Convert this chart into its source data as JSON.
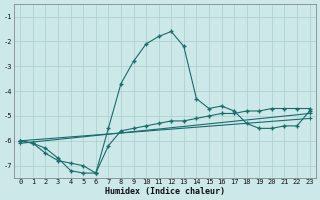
{
  "xlabel": "Humidex (Indice chaleur)",
  "bg_color": "#cce8e8",
  "line_color": "#1a6b6b",
  "grid_color": "#aacece",
  "xlim": [
    -0.5,
    23.5
  ],
  "ylim": [
    -7.5,
    -0.5
  ],
  "yticks": [
    -7,
    -6,
    -5,
    -4,
    -3,
    -2,
    -1
  ],
  "xticks": [
    0,
    1,
    2,
    3,
    4,
    5,
    6,
    7,
    8,
    9,
    10,
    11,
    12,
    13,
    14,
    15,
    16,
    17,
    18,
    19,
    20,
    21,
    22,
    23
  ],
  "curve1_x": [
    0,
    1,
    2,
    3,
    4,
    5,
    6,
    7,
    8,
    9,
    10,
    11,
    12,
    13,
    14,
    15,
    16,
    17,
    18,
    19,
    20,
    21,
    22,
    23
  ],
  "curve1_y": [
    -6.0,
    -6.1,
    -6.5,
    -6.8,
    -6.9,
    -7.0,
    -7.3,
    -5.5,
    -3.7,
    -2.8,
    -2.1,
    -1.8,
    -1.6,
    -2.2,
    -4.3,
    -4.7,
    -4.6,
    -4.8,
    -5.3,
    -5.5,
    -5.5,
    -5.4,
    -5.4,
    -4.8
  ],
  "curve2_x": [
    0,
    1,
    2,
    3,
    4,
    5,
    6,
    7,
    8,
    9,
    10,
    11,
    12,
    13,
    14,
    15,
    16,
    17,
    18,
    19,
    20,
    21,
    22,
    23
  ],
  "curve2_y": [
    -6.0,
    -6.1,
    -6.3,
    -6.7,
    -7.2,
    -7.3,
    -7.3,
    -6.2,
    -5.6,
    -5.5,
    -5.4,
    -5.3,
    -5.2,
    -5.2,
    -5.1,
    -5.0,
    -4.9,
    -4.9,
    -4.8,
    -4.8,
    -4.7,
    -4.7,
    -4.7,
    -4.7
  ],
  "line3_x": [
    0,
    23
  ],
  "line3_y": [
    -6.0,
    -5.1
  ],
  "line4_x": [
    0,
    23
  ],
  "line4_y": [
    -6.1,
    -4.9
  ]
}
